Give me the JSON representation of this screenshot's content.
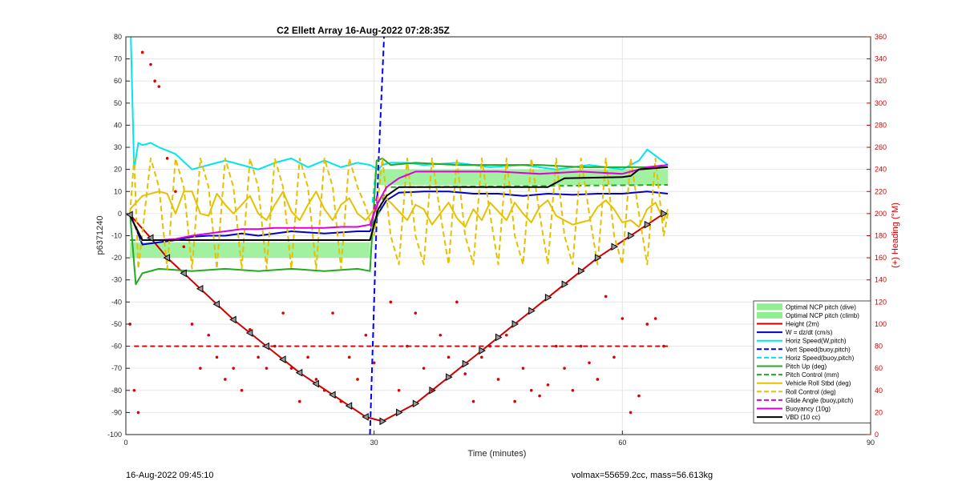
{
  "chart_data": {
    "type": "line",
    "title": "C2 Ellett Array 16-Aug-2022 07:28:35Z",
    "xlabel": "Time (minutes)",
    "ylabel": "p6371240",
    "y2label": "(+) Heading (°M)",
    "xlim": [
      0,
      90
    ],
    "ylim": [
      -100,
      80
    ],
    "y2lim": [
      0,
      360
    ],
    "xticks": [
      "0",
      "30",
      "60",
      "90"
    ],
    "yticks": [
      "80",
      "70",
      "60",
      "50",
      "40",
      "30",
      "20",
      "10",
      "0",
      "-10",
      "-20",
      "-30",
      "-40",
      "-50",
      "-60",
      "-70",
      "-80",
      "-90",
      "-100"
    ],
    "y2ticks": [
      "360",
      "340",
      "320",
      "300",
      "280",
      "260",
      "240",
      "220",
      "200",
      "180",
      "160",
      "140",
      "120",
      "100",
      "80",
      "60",
      "40",
      "20",
      "0"
    ],
    "grid": true,
    "legend_position": "bottom-right",
    "series": [
      {
        "name": "Optimal NCP pitch (dive)",
        "color": "#90ee90",
        "style": "band",
        "x_range": [
          0.5,
          29.5
        ],
        "y_range": [
          -20,
          -13
        ]
      },
      {
        "name": "Optimal NCP pitch (climb)",
        "color": "#90ee90",
        "style": "band",
        "x_range": [
          30.5,
          65.5
        ],
        "y_range": [
          13,
          20
        ]
      },
      {
        "name": "Height (2m)",
        "color": "#cc0000",
        "style": "line-markers",
        "x": [
          0.5,
          3,
          5,
          7,
          9,
          11,
          13,
          15,
          17,
          19,
          21,
          23,
          25,
          27,
          29,
          31,
          33,
          35,
          37,
          39,
          41,
          43,
          45,
          47,
          49,
          51,
          53,
          55,
          57,
          59,
          61,
          63,
          65
        ],
        "y": [
          -0.5,
          -11,
          -20,
          -27,
          -34,
          -41,
          -48,
          -54,
          -60,
          -66,
          -72,
          -77,
          -82,
          -87,
          -92,
          -94,
          -90,
          -86,
          -80,
          -74,
          -68,
          -62,
          -56,
          -50,
          -44,
          -38,
          -32,
          -26,
          -20,
          -15,
          -10,
          -5,
          0
        ]
      },
      {
        "name": "W = dz/dt (cm/s)",
        "color": "#0000cc",
        "style": "solid",
        "x": [
          0.5,
          2,
          4,
          6,
          8,
          10,
          12,
          14,
          16,
          18,
          20,
          22,
          24,
          26,
          28,
          29.5,
          30.5,
          31.5,
          33,
          36,
          39,
          42,
          45,
          48,
          51,
          54,
          57,
          60,
          63,
          65.5
        ],
        "y": [
          0,
          -14,
          -13,
          -12,
          -10.5,
          -10,
          -10,
          -9,
          -10,
          -9,
          -8,
          -8.5,
          -9,
          -8.5,
          -8,
          -8,
          0,
          6,
          9.5,
          10,
          10,
          9,
          9,
          8,
          9,
          8.5,
          9,
          9,
          10,
          9
        ]
      },
      {
        "name": "Horiz Speed(W,pitch)",
        "color": "#00e5ee",
        "style": "solid",
        "x": [
          0.6,
          1,
          1.5,
          2,
          3,
          4,
          6,
          8,
          10,
          12,
          14,
          16,
          18,
          20,
          22,
          24,
          26,
          28,
          29.5,
          30.5,
          31,
          32,
          34,
          36,
          40,
          44,
          48,
          52,
          56,
          60,
          62,
          63,
          65.5
        ],
        "y": [
          80,
          20,
          32,
          31,
          32,
          30,
          27,
          20,
          22,
          24,
          22,
          20,
          23,
          25,
          21,
          24,
          21,
          23,
          22,
          20,
          22,
          23,
          23,
          22,
          23,
          21,
          22,
          20,
          22,
          20,
          24,
          29,
          22
        ]
      },
      {
        "name": "Vert Speed(buoy,pitch)",
        "color": "#0000ff",
        "style": "dashed",
        "x": [
          29.5,
          30.5,
          31.2
        ],
        "y": [
          -100,
          20,
          80
        ]
      },
      {
        "name": "Horiz Speed(buoy,pitch)",
        "color": "#00e5ee",
        "style": "dashed",
        "x": [
          29.8,
          30.3
        ],
        "y": [
          5,
          22
        ]
      },
      {
        "name": "Pitch Up (deg)",
        "color": "#22aa22",
        "style": "solid",
        "x": [
          0.5,
          1.2,
          2,
          4,
          8,
          12,
          16,
          20,
          24,
          28,
          29.5,
          30.3,
          31,
          32,
          35,
          40,
          45,
          50,
          55,
          60,
          65.5
        ],
        "y": [
          0,
          -32,
          -27,
          -25,
          -26,
          -25,
          -26,
          -25,
          -26,
          -25,
          -26,
          24,
          25,
          22,
          23,
          22,
          22,
          22,
          21,
          21,
          21
        ]
      },
      {
        "name": "Pitch Control (mm)",
        "color": "#22aa22",
        "style": "dashed",
        "x": [
          0.5,
          29.5,
          31.5,
          33,
          65.5
        ],
        "y": [
          -12,
          -12,
          12,
          12,
          13
        ]
      },
      {
        "name": "Vehicle Roll Stbd (deg)",
        "color": "#e5c100",
        "style": "solid",
        "x": [
          0.5,
          2,
          3,
          4,
          5,
          6,
          7,
          8,
          9,
          10,
          11,
          12,
          13,
          14,
          15,
          16,
          17,
          18,
          19,
          20,
          21,
          22,
          23,
          24,
          25,
          26,
          27,
          28,
          29,
          30,
          31,
          32,
          33,
          34,
          35,
          36,
          37,
          38,
          39,
          40,
          41,
          42,
          43,
          44,
          45,
          46,
          47,
          48,
          49,
          50,
          51,
          52,
          53,
          54,
          55,
          56,
          57,
          58,
          59,
          60,
          61,
          62,
          63,
          64,
          65,
          65.5
        ],
        "y": [
          2,
          8,
          9,
          10,
          9,
          0,
          10,
          10,
          0,
          -1,
          9,
          4,
          0,
          4,
          8,
          0,
          -3,
          4,
          10,
          1,
          -3,
          4,
          10,
          2,
          -3,
          4,
          7,
          0,
          -3,
          2,
          8,
          5,
          1,
          -3,
          4,
          2,
          -5,
          0,
          5,
          -2,
          -6,
          2,
          -3,
          5,
          1,
          -3,
          5,
          0,
          -4,
          3,
          6,
          -1,
          -3,
          -5,
          -4,
          -3,
          3,
          6,
          2,
          -4,
          -3,
          -6,
          2,
          5,
          -3,
          2
        ]
      },
      {
        "name": "Roll Control (deg)",
        "color": "#e5c100",
        "style": "dashed",
        "x": [
          0.5,
          1,
          1.5,
          3,
          4,
          5,
          6,
          7,
          8,
          9,
          10,
          11,
          12,
          13,
          14,
          15,
          16,
          17,
          18,
          19,
          20,
          21,
          22,
          23,
          24,
          25,
          26,
          27,
          28,
          29,
          30,
          31,
          32,
          33,
          34,
          35,
          36,
          37,
          38,
          39,
          40,
          41,
          42,
          43,
          44,
          45,
          46,
          47,
          48,
          49,
          50,
          51,
          52,
          53,
          54,
          55,
          56,
          57,
          58,
          59,
          60,
          61,
          62,
          63,
          64,
          65,
          65.5
        ],
        "y": [
          0,
          25,
          -25,
          25,
          12,
          -25,
          25,
          12,
          -25,
          25,
          12,
          -25,
          25,
          12,
          -25,
          25,
          12,
          -25,
          25,
          12,
          -25,
          25,
          12,
          -25,
          25,
          12,
          -25,
          25,
          12,
          3,
          -10,
          25,
          -10,
          -23,
          25,
          -10,
          -23,
          25,
          0,
          -23,
          25,
          -10,
          -23,
          25,
          0,
          -23,
          25,
          -10,
          -23,
          25,
          0,
          -23,
          25,
          -10,
          -23,
          25,
          0,
          -23,
          25,
          -10,
          -23,
          25,
          0,
          -23,
          25,
          -10,
          0
        ]
      },
      {
        "name": "Glide Angle (buoy,pitch)",
        "color": "#dd00dd",
        "style": "dashed",
        "x": [
          29.6,
          30.4
        ],
        "y": [
          -6,
          9
        ]
      },
      {
        "name": "Buoyancy (10g)",
        "color": "#dd00dd",
        "style": "solid",
        "x": [
          0.5,
          2,
          4,
          6,
          8,
          10,
          12,
          14,
          16,
          18,
          20,
          22,
          24,
          26,
          28,
          29.5,
          30.5,
          31.5,
          33,
          35,
          40,
          45,
          50,
          55,
          60,
          63,
          65.5
        ],
        "y": [
          -1,
          -12,
          -12,
          -11.5,
          -10,
          -9,
          -8,
          -7,
          -7,
          -6.5,
          -6.5,
          -6.5,
          -6.5,
          -6,
          -6,
          -5,
          5,
          12,
          16,
          19,
          19,
          19,
          18,
          19,
          18,
          21,
          22
        ]
      },
      {
        "name": "VBD (10 cc)",
        "color": "#000000",
        "style": "solid",
        "x": [
          0.5,
          2,
          10,
          20,
          29.5,
          30.5,
          31.5,
          33,
          35,
          40,
          45,
          51,
          53,
          60,
          61,
          62,
          65.5
        ],
        "y": [
          -1,
          -12,
          -12,
          -12,
          -12,
          2,
          8,
          12,
          12,
          12,
          12,
          12,
          16,
          16.5,
          17,
          20,
          21
        ]
      }
    ],
    "heading_points": {
      "name": "heading (°M)",
      "color": "#dd0000",
      "x": [
        0.5,
        1,
        1.5,
        2,
        3,
        3.5,
        4,
        5,
        6,
        7,
        8,
        9,
        10,
        11,
        12,
        13,
        14,
        15,
        16,
        17,
        18,
        19,
        20,
        21,
        22,
        23,
        24,
        25,
        26,
        27,
        28,
        29,
        30,
        32,
        33,
        34,
        35,
        36,
        37,
        38,
        39,
        40,
        41,
        42,
        43,
        44,
        45,
        46,
        47,
        48,
        49,
        50,
        51,
        52,
        53,
        54,
        55,
        56,
        57,
        58,
        59,
        60,
        61,
        62,
        63,
        64,
        65
      ],
      "y": [
        100,
        40,
        20,
        346,
        335,
        320,
        315,
        250,
        220,
        170,
        100,
        60,
        90,
        70,
        50,
        60,
        40,
        95,
        70,
        60,
        80,
        110,
        60,
        30,
        70,
        50,
        40,
        110,
        30,
        70,
        50,
        90,
        65,
        120,
        40,
        80,
        110,
        60,
        40,
        90,
        70,
        120,
        55,
        30,
        70,
        80,
        50,
        90,
        30,
        60,
        40,
        35,
        45,
        80,
        60,
        40,
        80,
        65,
        50,
        125,
        70,
        105,
        20,
        35,
        100,
        105,
        80
      ]
    },
    "reference_line": {
      "name": "heading ref",
      "color": "#cc0000",
      "style": "dashed",
      "x": [
        1,
        65.5
      ],
      "y": [
        -60,
        -60
      ]
    }
  },
  "footer": {
    "left": "16-Aug-2022 09:45:10",
    "right": "volmax=55659.2cc, mass=56.613kg"
  }
}
